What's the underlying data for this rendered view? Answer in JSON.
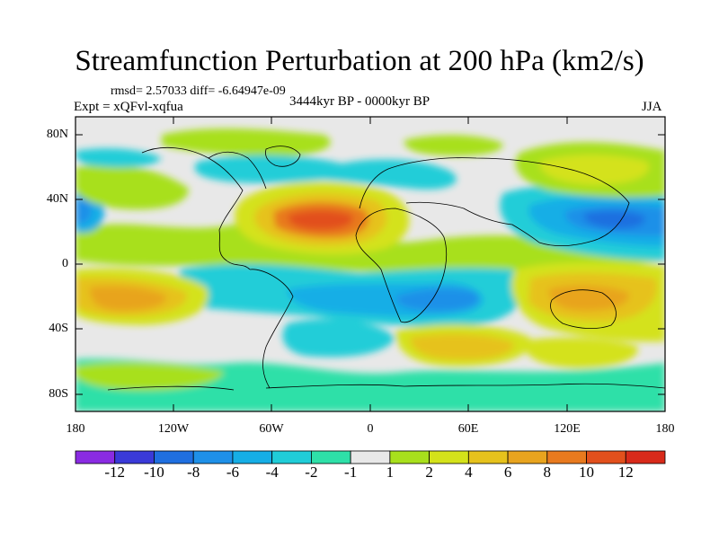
{
  "title": "Streamfunction Perturbation at 200 hPa (km2/s)",
  "stats_line": "rmsd= 2.57033 diff= -6.64947e-09",
  "experiment": "Expt = xQFvl-xqfua",
  "period": "3444kyr BP - 0000kyr BP",
  "season": "JJA",
  "lat_ticks": [
    "80N",
    "40N",
    "0",
    "40S",
    "80S"
  ],
  "lon_ticks": [
    "180",
    "120W",
    "60W",
    "0",
    "60E",
    "120E",
    "180"
  ],
  "colorbar": {
    "labels": [
      "-12",
      "-10",
      "-8",
      "-6",
      "-4",
      "-2",
      "-1",
      "1",
      "2",
      "4",
      "6",
      "8",
      "10",
      "12"
    ],
    "colors": [
      "#8a2be2",
      "#3a3ad8",
      "#1f6fe0",
      "#1e90e8",
      "#16aee6",
      "#20cdd8",
      "#2ee0a8",
      "#e8e8e8",
      "#a8e01c",
      "#d4e21a",
      "#e6c21c",
      "#e8a41e",
      "#e87a1e",
      "#e2501c",
      "#d82a1a"
    ]
  }
}
